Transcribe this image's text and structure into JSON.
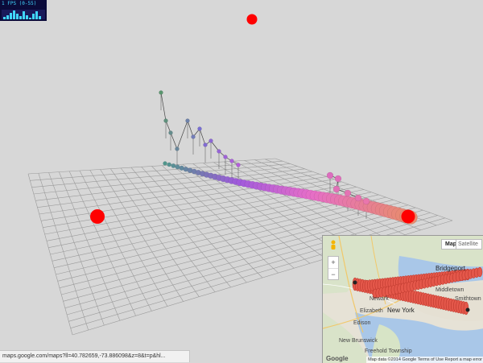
{
  "fps": {
    "label": "1 FPS (0-55)",
    "history": [
      0.25,
      0.4,
      0.7,
      0.95,
      0.6,
      0.3,
      0.85,
      0.45,
      0.2,
      0.55,
      0.8,
      0.35
    ]
  },
  "status_bar": {
    "url": "maps.google.com/maps?ll=40.782659,-73.886098&z=8&t=p&hl..."
  },
  "minimap": {
    "map_button": "Map",
    "satellite_button": "Satellite",
    "zoom_in": "+",
    "zoom_out": "−",
    "places": [
      "Bridgeport",
      "New York",
      "Elizabeth",
      "Edison",
      "New Brunswick",
      "Freehold Township",
      "Middletown",
      "Smithtown",
      "Newark"
    ],
    "attribution": "Map data ©2014 Google   Terms of Use   Report a map error",
    "logo": "Google"
  },
  "colors": {
    "background": "#d7d7d7",
    "grid_line": "#9a9a9a",
    "marker": "#ff0000",
    "route_fill": "#e4574a",
    "route_stroke": "#b63328"
  }
}
